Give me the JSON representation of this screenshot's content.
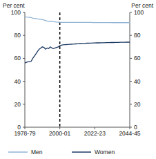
{
  "chart_data": {
    "type": "line",
    "ylabel": "Per cent",
    "y2label": "Per cent",
    "categories": [
      "1978-79",
      null,
      null,
      null,
      null,
      null,
      null,
      null,
      null,
      null,
      null,
      null,
      null,
      null,
      null,
      null,
      null,
      null,
      null,
      null,
      null,
      null,
      "2000-01",
      null,
      null,
      null,
      null,
      null,
      null,
      null,
      null,
      null,
      null,
      null,
      null,
      null,
      null,
      null,
      null,
      null,
      null,
      null,
      null,
      null,
      "2022-23",
      null,
      null,
      null,
      null,
      null,
      null,
      null,
      null,
      null,
      null,
      null,
      null,
      null,
      null,
      null,
      null,
      null,
      null,
      null,
      null,
      null,
      "2044-45"
    ],
    "series": [
      {
        "name": "Men",
        "color": "#8fb3d6",
        "values": [
          96.2,
          96.0,
          95.9,
          95.7,
          95.5,
          95.0,
          94.8,
          94.6,
          94.4,
          94.2,
          94.0,
          93.8,
          93.5,
          93.0,
          92.5,
          92.3,
          92.4,
          92.2,
          92.0,
          91.8,
          91.6,
          91.5,
          91.5,
          91.4,
          91.4,
          91.4,
          91.4,
          91.4,
          91.4,
          91.4,
          91.4,
          91.4,
          91.4,
          91.3,
          91.3,
          91.3,
          91.3,
          91.3,
          91.3,
          91.3,
          91.3,
          91.3,
          91.3,
          91.2,
          91.2,
          91.2,
          91.2,
          91.2,
          91.2,
          91.2,
          91.2,
          91.2,
          91.2,
          91.2,
          91.2,
          91.1,
          91.1,
          91.1,
          91.1,
          91.1,
          91.1,
          91.1,
          91.1,
          91.1,
          91.1,
          91.1,
          91.1
        ]
      },
      {
        "name": "Women",
        "color": "#1b3a63",
        "values": [
          56.0,
          56.5,
          57.0,
          57.0,
          57.5,
          60.0,
          62.0,
          64.0,
          66.0,
          68.0,
          69.0,
          70.0,
          69.5,
          68.0,
          69.0,
          68.5,
          70.0,
          69.0,
          68.5,
          69.0,
          69.5,
          70.0,
          71.0,
          71.5,
          71.7,
          71.9,
          72.0,
          72.1,
          72.2,
          72.3,
          72.4,
          72.5,
          72.6,
          72.7,
          72.8,
          72.9,
          73.0,
          73.0,
          73.1,
          73.2,
          73.2,
          73.3,
          73.3,
          73.4,
          73.4,
          73.5,
          73.5,
          73.5,
          73.6,
          73.6,
          73.6,
          73.7,
          73.7,
          73.7,
          73.8,
          73.8,
          73.8,
          73.9,
          73.9,
          73.9,
          74.0,
          74.0,
          74.0,
          74.0,
          74.1,
          74.1,
          74.1
        ]
      }
    ],
    "vline": "2000-01",
    "ylim": [
      0,
      100
    ],
    "yticks": [
      0,
      20,
      40,
      60,
      80,
      100
    ],
    "y2lim": [
      0,
      100
    ],
    "y2ticks": [
      0,
      20,
      40,
      60,
      80,
      100
    ],
    "legend": "bottom"
  }
}
